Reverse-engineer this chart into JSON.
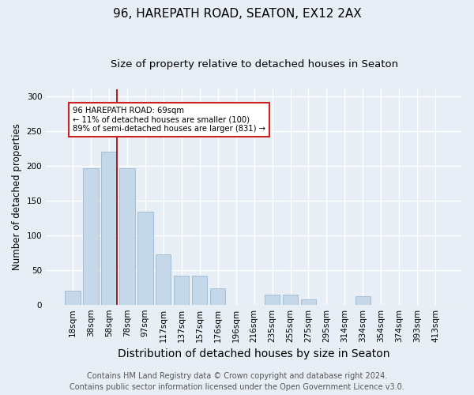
{
  "title": "96, HAREPATH ROAD, SEATON, EX12 2AX",
  "subtitle": "Size of property relative to detached houses in Seaton",
  "xlabel": "Distribution of detached houses by size in Seaton",
  "ylabel": "Number of detached properties",
  "footnote1": "Contains HM Land Registry data © Crown copyright and database right 2024.",
  "footnote2": "Contains public sector information licensed under the Open Government Licence v3.0.",
  "categories": [
    "18sqm",
    "38sqm",
    "58sqm",
    "78sqm",
    "97sqm",
    "117sqm",
    "137sqm",
    "157sqm",
    "176sqm",
    "196sqm",
    "216sqm",
    "235sqm",
    "255sqm",
    "275sqm",
    "295sqm",
    "314sqm",
    "334sqm",
    "354sqm",
    "374sqm",
    "393sqm",
    "413sqm"
  ],
  "values": [
    20,
    196,
    220,
    196,
    134,
    72,
    42,
    42,
    24,
    0,
    0,
    14,
    14,
    8,
    0,
    0,
    12,
    0,
    0,
    0,
    0
  ],
  "bar_color": "#c5d8ea",
  "bar_edge_color": "#9bb8d0",
  "marker_line_color": "#9b0000",
  "annotation_text": "96 HAREPATH ROAD: 69sqm\n← 11% of detached houses are smaller (100)\n89% of semi-detached houses are larger (831) →",
  "annotation_box_color": "white",
  "annotation_box_edge": "#cc2222",
  "ylim": [
    0,
    310
  ],
  "yticks": [
    0,
    50,
    100,
    150,
    200,
    250,
    300
  ],
  "background_color": "#e8eef5",
  "plot_bg_color": "#e8eef5",
  "grid_color": "white",
  "title_fontsize": 11,
  "subtitle_fontsize": 9.5,
  "xlabel_fontsize": 10,
  "ylabel_fontsize": 8.5,
  "tick_fontsize": 7.5,
  "footnote_fontsize": 7
}
